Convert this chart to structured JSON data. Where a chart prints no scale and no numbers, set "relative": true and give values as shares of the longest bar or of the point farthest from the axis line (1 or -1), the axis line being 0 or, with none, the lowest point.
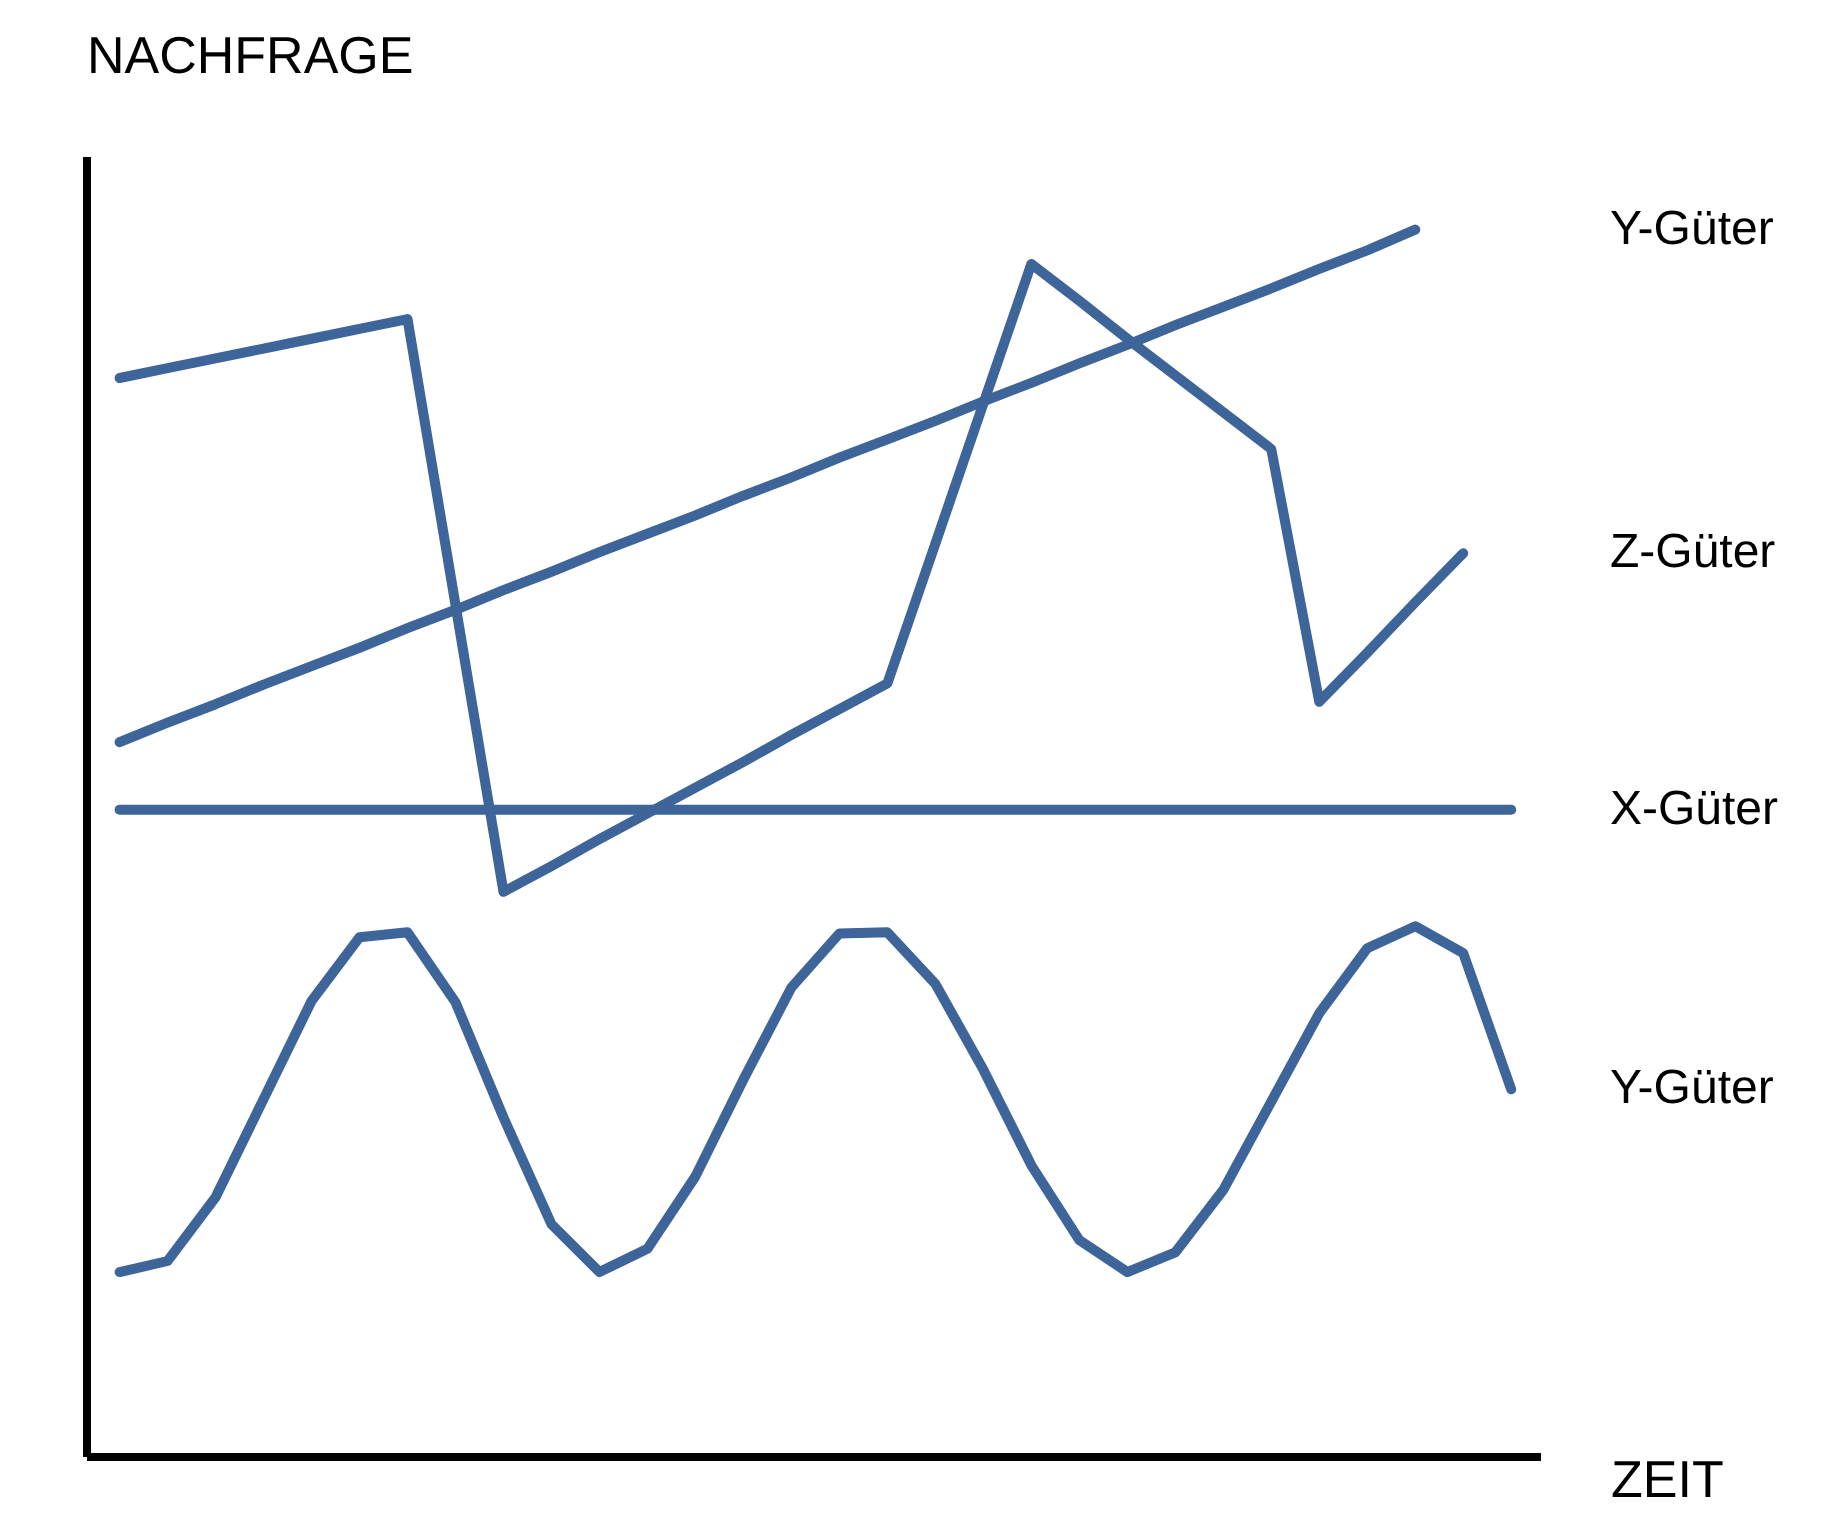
{
  "chart_data": {
    "type": "line",
    "relative": true,
    "xlabel": "ZEIT",
    "ylabel": "NACHFRAGE",
    "tick_labels": false,
    "grid": false,
    "marker": "none",
    "line_style": "solid",
    "categories": [
      null,
      null,
      null,
      null,
      null,
      null,
      null,
      null,
      null,
      null,
      null,
      null,
      null,
      null,
      null,
      null,
      null,
      null,
      null,
      null,
      null,
      null,
      null,
      null,
      null,
      null,
      null,
      null,
      null,
      null
    ],
    "series": [
      {
        "name": "Y-Güter",
        "color": "#3d6599",
        "values": [
          0.582,
          0.598,
          0.613,
          0.629,
          0.644,
          0.659,
          0.675,
          0.69,
          0.706,
          0.721,
          0.737,
          0.752,
          0.767,
          0.783,
          0.798,
          0.814,
          0.829,
          0.844,
          0.86,
          0.875,
          0.891,
          0.906,
          0.922,
          0.937,
          0.952,
          0.968,
          0.983,
          1.0,
          null,
          null
        ]
      },
      {
        "name": "Z-Güter",
        "color": "#3d6599",
        "values": [
          0.879,
          0.887,
          0.895,
          0.903,
          0.911,
          0.919,
          0.927,
          0.694,
          0.46,
          0.481,
          0.503,
          0.524,
          0.545,
          0.566,
          0.588,
          0.609,
          0.63,
          0.744,
          0.858,
          0.972,
          0.942,
          0.911,
          0.881,
          0.851,
          0.821,
          0.615,
          0.655,
          0.696,
          0.736,
          null
        ]
      },
      {
        "name": "X-Güter",
        "color": "#3d6599",
        "values": [
          0.527,
          0.527,
          0.527,
          0.527,
          0.527,
          0.527,
          0.527,
          0.527,
          0.527,
          0.527,
          0.527,
          0.527,
          0.527,
          0.527,
          0.527,
          0.527,
          0.527,
          0.527,
          0.527,
          0.527,
          0.527,
          0.527,
          0.527,
          0.527,
          0.527,
          0.527,
          0.527,
          0.527,
          0.527,
          0.527
        ]
      },
      {
        "name": "Y-Güter",
        "color": "#3d6599",
        "values": [
          0.15,
          0.159,
          0.211,
          0.291,
          0.371,
          0.423,
          0.427,
          0.37,
          0.276,
          0.189,
          0.15,
          0.169,
          0.228,
          0.307,
          0.382,
          0.426,
          0.427,
          0.385,
          0.315,
          0.237,
          0.176,
          0.15,
          0.166,
          0.217,
          0.289,
          0.361,
          0.414,
          0.432,
          0.41,
          0.299
        ]
      }
    ]
  }
}
